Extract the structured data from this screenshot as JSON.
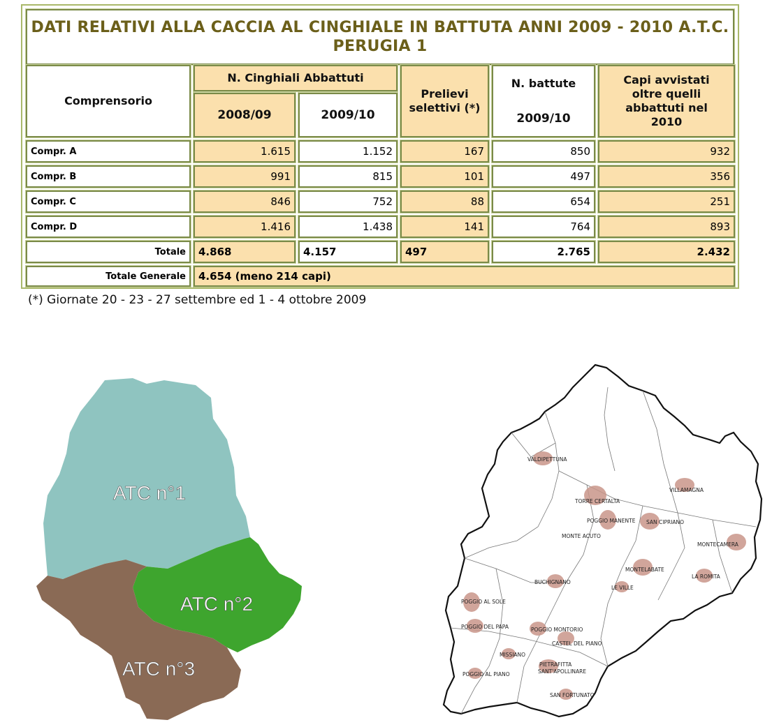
{
  "table": {
    "title": "DATI RELATIVI ALLA CACCIA AL CINGHIALE IN BATTUTA ANNI 2009 - 2010 A.T.C. PERUGIA 1",
    "headers": {
      "comprensorio": "Comprensorio",
      "abbattuti": "N. Cinghiali Abbattuti",
      "year_a": "2008/09",
      "year_b": "2009/10",
      "prelievi": "Prelievi selettivi (*)",
      "battute": "N. battute",
      "battute_year": "2009/10",
      "avvistati": "Capi avvistati oltre quelli abbattuti nel 2010"
    },
    "rows": [
      {
        "label": "Compr. A",
        "y0809": "1.615",
        "y0910": "1.152",
        "prelievi": "167",
        "battute": "850",
        "avvistati": "932"
      },
      {
        "label": "Compr. B",
        "y0809": "991",
        "y0910": "815",
        "prelievi": "101",
        "battute": "497",
        "avvistati": "356"
      },
      {
        "label": "Compr. C",
        "y0809": "846",
        "y0910": "752",
        "prelievi": "88",
        "battute": "654",
        "avvistati": "251"
      },
      {
        "label": "Compr. D",
        "y0809": "1.416",
        "y0910": "1.438",
        "prelievi": "141",
        "battute": "764",
        "avvistati": "893"
      }
    ],
    "totale": {
      "label": "Totale",
      "y0809": "4.868",
      "y0910": "4.157",
      "prelievi": "497",
      "battute": "2.765",
      "avvistati": "2.432"
    },
    "totale_generale": {
      "label": "Totale Generale",
      "value": "4.654 (meno 214 capi)"
    },
    "colors": {
      "title": "#6b5f1a",
      "cell_fill": "#fbe0ad",
      "border": "#7a8a48"
    }
  },
  "footnote": "(*) Giornate 20 - 23 - 27 settembre ed 1 - 4 ottobre 2009",
  "atc_map": {
    "labels": [
      "ATC n°1",
      "ATC n°2",
      "ATC n°3"
    ],
    "colors": {
      "atc1": "#8fc4c0",
      "atc2": "#3ea52e",
      "atc3": "#8a6a55"
    }
  },
  "comprensori_map": {
    "places": [
      "VALDIPETTUNA",
      "TORRE CERTALTA",
      "VILLAMAGNA",
      "POGGIO MANENTE",
      "SAN CIPRIANO",
      "MONTE ACUTO",
      "MONTECAMERA",
      "MONTELABATE",
      "LA ROMITA",
      "BUCHIGNANO",
      "LE VILLE",
      "POGGIO AL SOLE",
      "POGGIO DEL PAPA",
      "POGGIO MONTORIO",
      "CASTEL DEL PIANO",
      "MISSIANO",
      "PIETRAFITTA",
      "SANT'APOLLINARE",
      "POGGIO AL PIANO",
      "SAN FORTUNATO"
    ]
  }
}
